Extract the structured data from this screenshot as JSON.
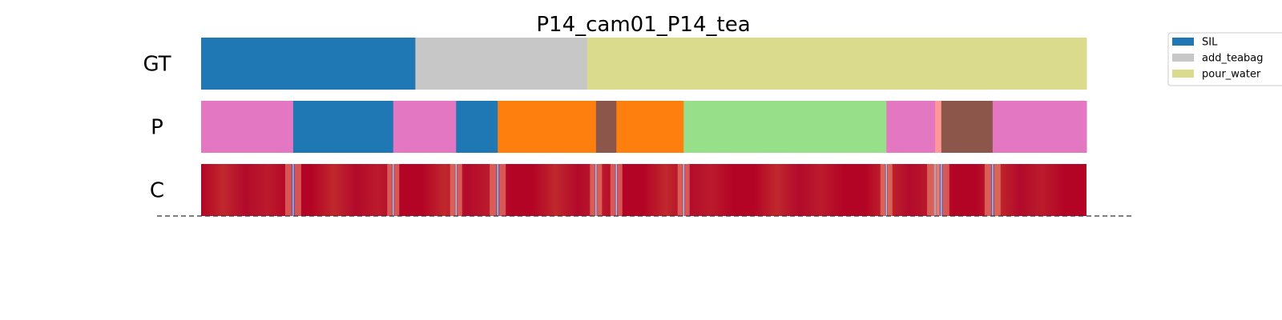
{
  "chart_data": {
    "type": "segmentation",
    "title": "P14_cam01_P14_tea",
    "frames": 1000,
    "rows": [
      {
        "label": "GT",
        "segments": [
          {
            "start": 0,
            "end": 242,
            "label": "SIL"
          },
          {
            "start": 242,
            "end": 436,
            "label": "add_teabag"
          },
          {
            "start": 436,
            "end": 1000,
            "label": "pour_water"
          }
        ]
      },
      {
        "label": "P",
        "segments": [
          {
            "start": 0,
            "end": 104,
            "label": "pink"
          },
          {
            "start": 104,
            "end": 217,
            "label": "SIL"
          },
          {
            "start": 217,
            "end": 288,
            "label": "pink"
          },
          {
            "start": 288,
            "end": 335,
            "label": "SIL"
          },
          {
            "start": 335,
            "end": 446,
            "label": "orange"
          },
          {
            "start": 446,
            "end": 469,
            "label": "brown"
          },
          {
            "start": 469,
            "end": 545,
            "label": "orange"
          },
          {
            "start": 545,
            "end": 774,
            "label": "lightgreen"
          },
          {
            "start": 774,
            "end": 829,
            "label": "pink"
          },
          {
            "start": 829,
            "end": 836,
            "label": "salmon"
          },
          {
            "start": 836,
            "end": 894,
            "label": "brown"
          },
          {
            "start": 894,
            "end": 1000,
            "label": "pink"
          }
        ]
      },
      {
        "label": "C",
        "confidence_dips": [
          {
            "pos": 104,
            "depth": 0.9,
            "width": 4
          },
          {
            "pos": 217,
            "depth": 0.7,
            "width": 3
          },
          {
            "pos": 288,
            "depth": 0.6,
            "width": 3
          },
          {
            "pos": 335,
            "depth": 0.8,
            "width": 4
          },
          {
            "pos": 446,
            "depth": 0.7,
            "width": 3
          },
          {
            "pos": 469,
            "depth": 0.8,
            "width": 3
          },
          {
            "pos": 545,
            "depth": 0.6,
            "width": 3
          },
          {
            "pos": 774,
            "depth": 0.8,
            "width": 3
          },
          {
            "pos": 829,
            "depth": 1.0,
            "width": 4
          },
          {
            "pos": 836,
            "depth": 0.9,
            "width": 4
          },
          {
            "pos": 894,
            "depth": 0.8,
            "width": 4
          }
        ]
      }
    ],
    "legend": {
      "placement": "top-right",
      "entries": [
        {
          "label": "SIL",
          "color": "#1f77b4"
        },
        {
          "label": "add_teabag",
          "color": "#c7c7c7"
        },
        {
          "label": "pour_water",
          "color": "#dbdb8d"
        }
      ]
    },
    "colors": {
      "SIL": "#1f77b4",
      "add_teabag": "#c7c7c7",
      "pour_water": "#dbdb8d",
      "pink": "#e377c2",
      "orange": "#ff7f0e",
      "brown": "#8c564b",
      "lightgreen": "#98df8a",
      "salmon": "#ff9896",
      "confidence_high": "#b40426",
      "confidence_low": "#3b4cc0"
    }
  }
}
